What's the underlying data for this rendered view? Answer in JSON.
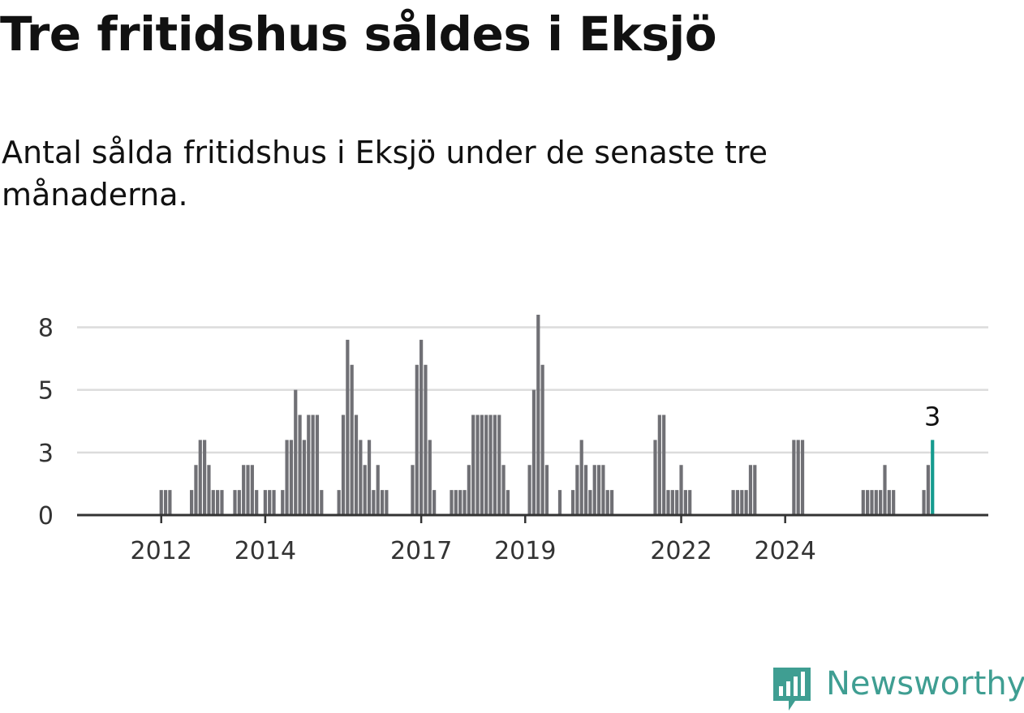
{
  "header": {
    "title": "Tre fritidshus såldes i Eksjö",
    "subtitle": "Antal sålda fritidshus i Eksjö under de senaste tre månaderna."
  },
  "brand": {
    "name": "Newsworthy",
    "icon": "newsworthy-logo-icon",
    "color": "#3f9e92"
  },
  "chart_data": {
    "type": "bar",
    "title": "Tre fritidshus såldes i Eksjö",
    "subtitle": "Antal sålda fritidshus i Eksjö under de senaste tre månaderna.",
    "xlabel": "",
    "ylabel": "",
    "y_ticks": [
      {
        "value": 0,
        "label": "0"
      },
      {
        "value": 2.5,
        "label": "3"
      },
      {
        "value": 5,
        "label": "5"
      },
      {
        "value": 7.5,
        "label": "8"
      }
    ],
    "ylim": [
      0,
      8
    ],
    "x_ticks": [
      "2012",
      "2014",
      "2017",
      "2019",
      "2022",
      "2024"
    ],
    "x_tick_index": [
      8,
      32,
      68,
      92,
      128,
      152
    ],
    "grid": true,
    "bar_color": "#707075",
    "highlight_color": "#159b8f",
    "highlight_label": "3",
    "values": [
      0,
      0,
      0,
      0,
      0,
      0,
      0,
      0,
      1,
      1,
      1,
      0,
      0,
      0,
      0,
      1,
      2,
      3,
      3,
      2,
      1,
      1,
      1,
      0,
      0,
      1,
      1,
      2,
      2,
      2,
      1,
      0,
      1,
      1,
      1,
      0,
      1,
      3,
      3,
      5,
      4,
      3,
      4,
      4,
      4,
      1,
      0,
      0,
      0,
      1,
      4,
      7,
      6,
      4,
      3,
      2,
      3,
      1,
      2,
      1,
      1,
      0,
      0,
      0,
      0,
      0,
      2,
      6,
      7,
      6,
      3,
      1,
      0,
      0,
      0,
      1,
      1,
      1,
      1,
      2,
      4,
      4,
      4,
      4,
      4,
      4,
      4,
      2,
      1,
      0,
      0,
      0,
      0,
      2,
      5,
      8,
      6,
      2,
      0,
      0,
      1,
      0,
      0,
      1,
      2,
      3,
      2,
      1,
      2,
      2,
      2,
      1,
      1,
      0,
      0,
      0,
      0,
      0,
      0,
      0,
      0,
      0,
      3,
      4,
      4,
      1,
      1,
      1,
      2,
      1,
      1,
      0,
      0,
      0,
      0,
      0,
      0,
      0,
      0,
      0,
      1,
      1,
      1,
      1,
      2,
      2,
      0,
      0,
      0,
      0,
      0,
      0,
      0,
      0,
      3,
      3,
      3,
      0,
      0,
      0,
      0,
      0,
      0,
      0,
      0,
      0,
      0,
      0,
      0,
      0,
      1,
      1,
      1,
      1,
      1,
      2,
      1,
      1,
      0,
      0,
      0,
      0,
      0,
      0,
      1,
      2,
      3
    ]
  }
}
